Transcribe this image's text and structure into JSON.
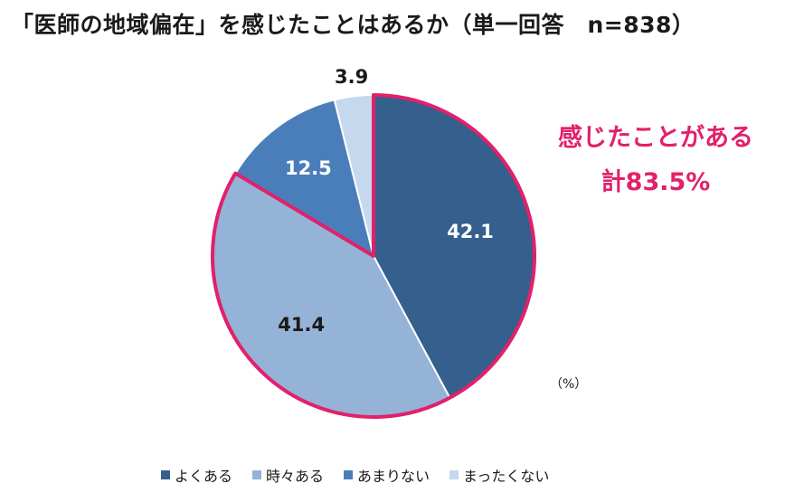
{
  "chart_data": {
    "type": "pie",
    "title": "「医師の地域偏在」を感じたことはあるか（単一回答　n=838）",
    "unit_label": "（%）",
    "categories": [
      "よくある",
      "時々ある",
      "あまりない",
      "まったくない"
    ],
    "values": [
      42.1,
      41.4,
      12.5,
      3.9
    ],
    "value_labels": [
      "42.1",
      "41.4",
      "12.5",
      "3.9"
    ],
    "colors": [
      "#355f8d",
      "#95b2d7",
      "#4a7ebb",
      "#c6d8ee"
    ],
    "highlight": {
      "categories": [
        "よくある",
        "時々ある"
      ],
      "color": "#e2206b",
      "label_line1": "感じたことがある",
      "label_line2": "計83.5%"
    },
    "legend_position": "bottom"
  }
}
